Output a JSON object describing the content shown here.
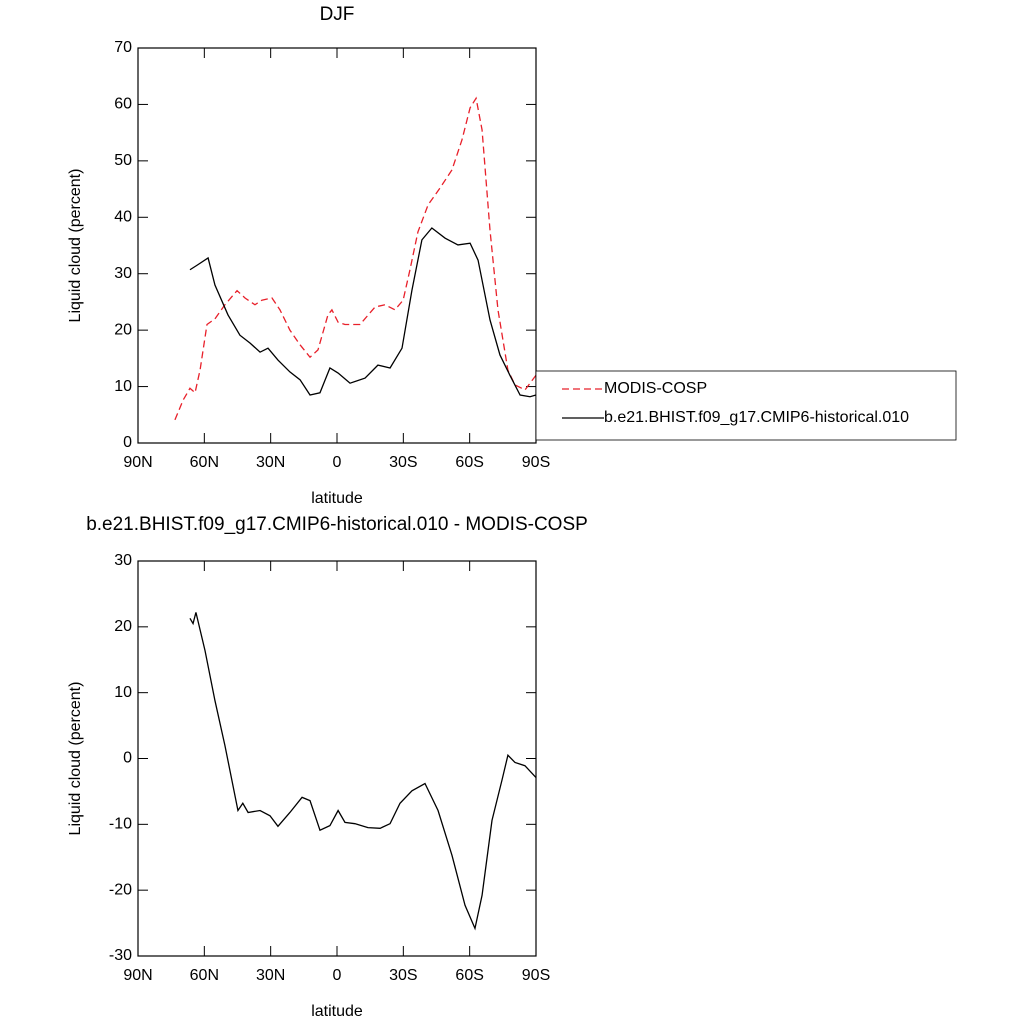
{
  "chart_data": [
    {
      "type": "line",
      "title": "DJF",
      "xlabel": "latitude",
      "ylabel": "Liquid cloud (percent)",
      "xlim": [
        90,
        -90
      ],
      "xticks": [
        {
          "value": 90,
          "label": "90N"
        },
        {
          "value": 60,
          "label": "60N"
        },
        {
          "value": 30,
          "label": "30N"
        },
        0,
        {
          "value": -30,
          "label": "30S"
        },
        {
          "value": -60,
          "label": "60S"
        },
        {
          "value": -90,
          "label": "90S"
        }
      ],
      "ylim": [
        0,
        70
      ],
      "yticks": [
        0,
        10,
        20,
        30,
        40,
        50,
        60,
        70
      ],
      "legend": "right",
      "series": [
        {
          "name": "MODIS-COSP",
          "color": "#e8202a",
          "line_style": "dashed",
          "x": [
            73.3,
            69.6,
            66.5,
            64.2,
            61.9,
            58.8,
            55.2,
            50.7,
            45.2,
            41.6,
            37.1,
            34,
            29.4,
            25.8,
            21.3,
            16.7,
            12.2,
            8.6,
            4.1,
            2.3,
            -0.5,
            -3.6,
            -10.4,
            -17.2,
            -21.7,
            -26.2,
            -29.9,
            -33,
            -36.6,
            -41.2,
            -46.6,
            -52,
            -56.5,
            -60.2,
            -62.9,
            -65.6,
            -69.2,
            -72.8,
            -77.3,
            -80.5,
            -85,
            -90
          ],
          "values": [
            4.1,
            7.6,
            9.7,
            8.9,
            13,
            21,
            22,
            24.5,
            27,
            25.7,
            24.5,
            25.3,
            25.7,
            23.6,
            20,
            17.4,
            15.2,
            16.5,
            22.7,
            23.6,
            21.4,
            21,
            21,
            24.1,
            24.5,
            23.6,
            25.3,
            30.7,
            37.4,
            42.2,
            45.2,
            48.4,
            53.7,
            59.4,
            61.1,
            55.5,
            37.7,
            23.6,
            12.9,
            10.3,
            9.4,
            12
          ]
        },
        {
          "name": "b.e21.BHIST.f09_g17.CMIP6-historical.010",
          "color": "#000000",
          "line_style": "solid",
          "x": [
            66.5,
            63.3,
            58.3,
            55.2,
            49.3,
            43.9,
            39.3,
            34.8,
            31.2,
            26.7,
            21.3,
            16.7,
            12.2,
            7.7,
            3.2,
            -0.5,
            -5.9,
            -12.7,
            -18.5,
            -24,
            -29.4,
            -33.9,
            -38.4,
            -42.9,
            -48.9,
            -54.7,
            -60.2,
            -63.8,
            -69.2,
            -73.7,
            -78.2,
            -82.8,
            -87.3,
            -90
          ],
          "values": [
            30.7,
            31.5,
            32.8,
            28,
            22.7,
            19.1,
            17.7,
            16.1,
            16.8,
            14.7,
            12.6,
            11.2,
            8.5,
            8.9,
            13.3,
            12.4,
            10.6,
            11.5,
            13.8,
            13.3,
            16.8,
            27.1,
            36,
            38.1,
            36.3,
            35.1,
            35.4,
            32.4,
            21.8,
            15.6,
            12,
            8.5,
            8.2,
            8.5
          ]
        }
      ]
    },
    {
      "type": "line",
      "title": "b.e21.BHIST.f09_g17.CMIP6-historical.010 - MODIS-COSP",
      "xlabel": "latitude",
      "ylabel": "Liquid cloud (percent)",
      "xlim": [
        90,
        -90
      ],
      "xticks": [
        {
          "value": 90,
          "label": "90N"
        },
        {
          "value": 60,
          "label": "60N"
        },
        {
          "value": 30,
          "label": "30N"
        },
        0,
        {
          "value": -30,
          "label": "30S"
        },
        {
          "value": -60,
          "label": "60S"
        },
        {
          "value": -90,
          "label": "90S"
        }
      ],
      "ylim": [
        -30,
        30
      ],
      "yticks": [
        -30,
        -20,
        -10,
        0,
        10,
        20,
        30
      ],
      "series": [
        {
          "color": "#000000",
          "line_style": "solid",
          "x": [
            66.5,
            65.1,
            63.8,
            59.7,
            55.2,
            50.7,
            44.8,
            42.6,
            40.2,
            34.8,
            30.3,
            26.7,
            21.3,
            15.8,
            12.2,
            7.7,
            3.2,
            -0.5,
            -3.6,
            -8.1,
            -14,
            -19.5,
            -24,
            -28.5,
            -33.9,
            -39.8,
            -45.7,
            -52,
            -57.9,
            -62.4,
            -65.6,
            -70.1,
            -74.6,
            -77.3,
            -80.5,
            -85,
            -90
          ],
          "values": [
            21.3,
            20.5,
            22.2,
            16.4,
            8.8,
            2,
            -7.9,
            -6.8,
            -8.2,
            -7.9,
            -8.7,
            -10.3,
            -8.2,
            -5.9,
            -6.4,
            -10.9,
            -10.2,
            -7.9,
            -9.7,
            -9.9,
            -10.5,
            -10.6,
            -9.9,
            -6.8,
            -4.9,
            -3.8,
            -7.9,
            -14.7,
            -22.3,
            -25.8,
            -20.8,
            -9.4,
            -3.3,
            0.5,
            -0.6,
            -1.1,
            -2.9
          ]
        }
      ]
    }
  ]
}
